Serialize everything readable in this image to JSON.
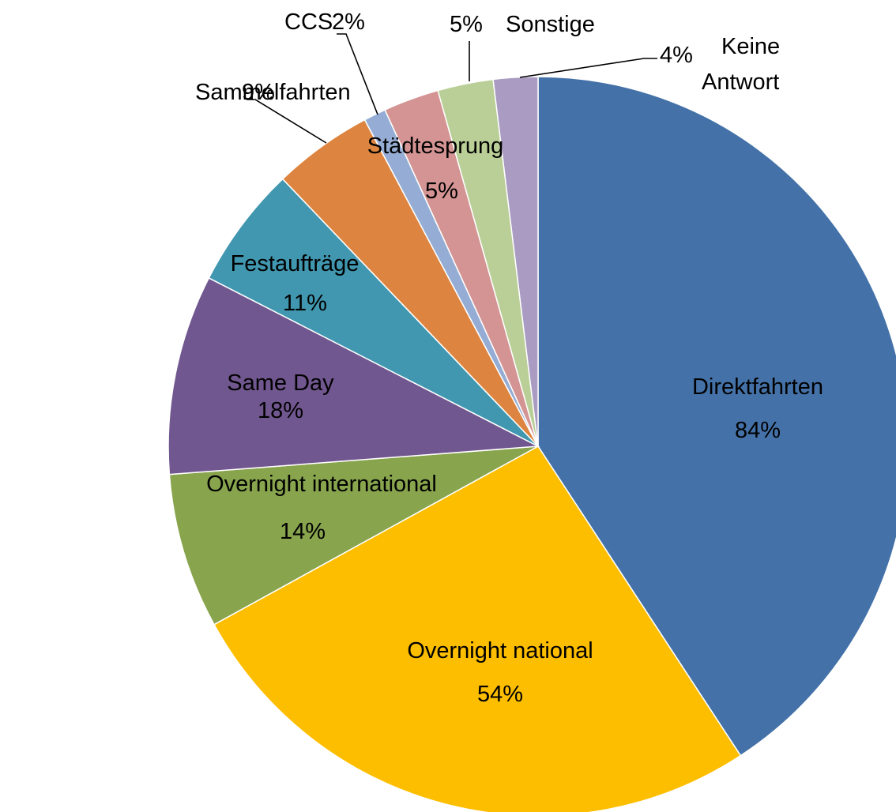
{
  "chart_data": {
    "type": "pie",
    "start_angle_deg": 0,
    "direction": "clockwise",
    "labels": [
      "Direktfahrten",
      "Overnight national",
      "Overnight international",
      "Same Day",
      "Festaufträge",
      "Sammelfahrten",
      "CCS",
      "Städtesprung",
      "Sonstige",
      "Keine Antwort"
    ],
    "values": [
      84,
      54,
      14,
      18,
      11,
      9,
      2,
      5,
      5,
      4
    ],
    "colors": [
      "#4472A8",
      "#FDBE00",
      "#88A44D",
      "#71578F",
      "#4197B0",
      "#DD8540",
      "#95ADD4",
      "#D39493",
      "#BACF97",
      "#A99BC1"
    ],
    "value_labels": [
      "84%",
      "54%",
      "14%",
      "18%",
      "11%",
      "9%",
      "2%",
      "5%",
      "5%",
      "4%"
    ],
    "label_placement": [
      "inside",
      "inside",
      "inside",
      "inside",
      "inside",
      "outside-leader",
      "outside-leader",
      "inside",
      "outside-leader",
      "outside-leader"
    ]
  }
}
